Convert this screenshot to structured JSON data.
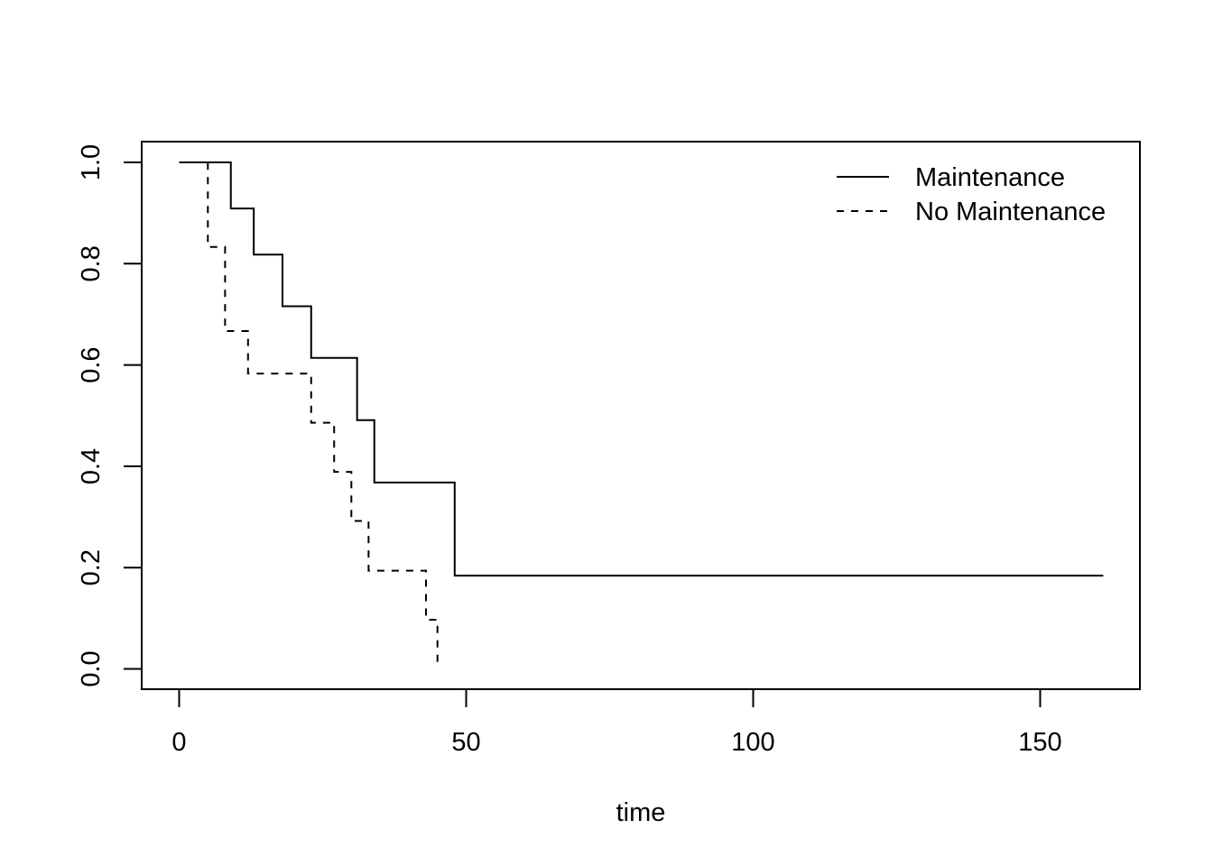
{
  "chart_data": {
    "type": "line",
    "title": "",
    "xlabel": "time",
    "ylabel": "",
    "xlim": [
      0,
      161
    ],
    "ylim": [
      0,
      1
    ],
    "x_ticks": [
      "0",
      "50",
      "100",
      "150"
    ],
    "y_ticks": [
      "0.0",
      "0.2",
      "0.4",
      "0.6",
      "0.8",
      "1.0"
    ],
    "grid": false,
    "legend_position": "top-right",
    "series": [
      {
        "name": "Maintenance",
        "line_style": "solid",
        "color": "#000000",
        "steps": [
          {
            "x": 0,
            "y": 1.0
          },
          {
            "x": 9,
            "y": 0.909
          },
          {
            "x": 13,
            "y": 0.818
          },
          {
            "x": 18,
            "y": 0.716
          },
          {
            "x": 23,
            "y": 0.614
          },
          {
            "x": 31,
            "y": 0.491
          },
          {
            "x": 34,
            "y": 0.368
          },
          {
            "x": 48,
            "y": 0.184
          }
        ],
        "end_x": 161
      },
      {
        "name": "No Maintenance",
        "line_style": "dashed",
        "color": "#000000",
        "steps": [
          {
            "x": 0,
            "y": 1.0
          },
          {
            "x": 5,
            "y": 0.833
          },
          {
            "x": 8,
            "y": 0.667
          },
          {
            "x": 12,
            "y": 0.583
          },
          {
            "x": 23,
            "y": 0.486
          },
          {
            "x": 27,
            "y": 0.389
          },
          {
            "x": 30,
            "y": 0.292
          },
          {
            "x": 33,
            "y": 0.194
          },
          {
            "x": 43,
            "y": 0.097
          },
          {
            "x": 45,
            "y": 0.0
          }
        ],
        "end_x": 45
      }
    ]
  }
}
